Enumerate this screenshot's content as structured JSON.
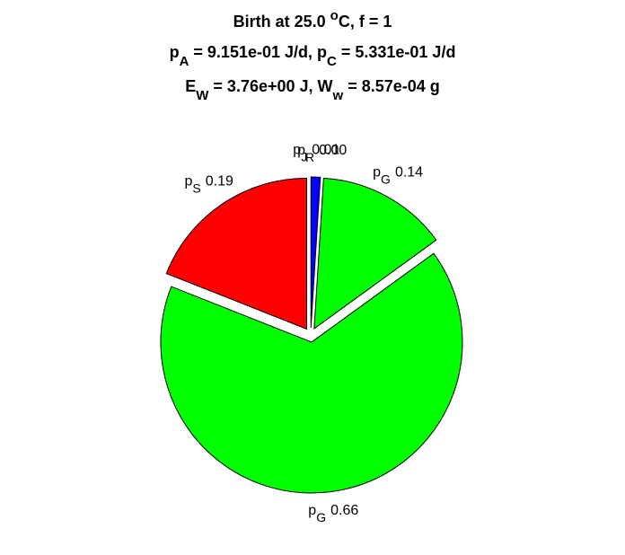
{
  "chart_data": {
    "type": "pie",
    "title": [
      [
        {
          "t": "Birth at 25.0 "
        },
        {
          "t": "o",
          "s": "super"
        },
        {
          "t": "C, f = 1"
        }
      ],
      [
        {
          "t": "p"
        },
        {
          "t": "A",
          "s": "sub"
        },
        {
          "t": " = 9.151e-01 J/d, p"
        },
        {
          "t": "C",
          "s": "sub"
        },
        {
          "t": " = 5.331e-01 J/d"
        }
      ],
      [
        {
          "t": "E"
        },
        {
          "t": "W",
          "s": "sub"
        },
        {
          "t": " = 3.76e+00 J, W"
        },
        {
          "t": "w",
          "s": "sub"
        },
        {
          "t": " = 8.57e-04 g"
        }
      ]
    ],
    "labels": [
      {
        "base": "p",
        "sub": "J"
      },
      {
        "base": "p",
        "sub": "R"
      },
      {
        "base": "p",
        "sub": "G"
      },
      {
        "base": "p",
        "sub": "G"
      },
      {
        "base": "p",
        "sub": "S"
      }
    ],
    "values": [
      0.01,
      0.0,
      0.14,
      0.66,
      0.19
    ],
    "value_labels": [
      "0.01",
      "0.00",
      "0.14",
      "0.66",
      "0.19"
    ],
    "colors": [
      "#0000ff",
      null,
      "#00ff00",
      "#00ff00",
      "#ff0000"
    ],
    "explode": true
  }
}
